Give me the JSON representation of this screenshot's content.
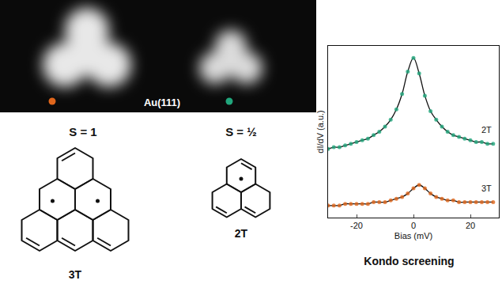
{
  "stm_image": {
    "label": "Au(111)",
    "markers": [
      {
        "molecule": "3T",
        "color": "#e0661c"
      },
      {
        "molecule": "2T",
        "color": "#21a67c"
      }
    ]
  },
  "molecules": [
    {
      "name": "3T",
      "spin": "S = 1"
    },
    {
      "name": "2T",
      "spin": "S = ½"
    }
  ],
  "chart_data": {
    "type": "scatter",
    "caption": "Kondo screening",
    "x_label": "Bias (mV)",
    "y_label": "dI/dV (a.u.)",
    "x": [
      -30,
      -28,
      -26,
      -24,
      -22,
      -20,
      -18,
      -16,
      -14,
      -12,
      -10,
      -8,
      -6,
      -4,
      -2,
      0,
      2,
      4,
      6,
      8,
      10,
      12,
      14,
      16,
      18,
      20,
      22,
      24,
      26,
      28
    ],
    "series": [
      {
        "name": "2T",
        "color": "#21a67c",
        "marker": "circle",
        "line_style": "solid",
        "values": [
          0.4,
          0.41,
          0.41,
          0.42,
          0.43,
          0.44,
          0.45,
          0.46,
          0.48,
          0.5,
          0.53,
          0.57,
          0.63,
          0.72,
          0.85,
          0.93,
          0.84,
          0.71,
          0.62,
          0.57,
          0.53,
          0.5,
          0.48,
          0.47,
          0.46,
          0.45,
          0.44,
          0.44,
          0.43,
          0.43
        ]
      },
      {
        "name": "3T",
        "color": "#e0661c",
        "marker": "circle",
        "line_style": "solid",
        "values": [
          0.07,
          0.07,
          0.07,
          0.08,
          0.08,
          0.08,
          0.08,
          0.08,
          0.09,
          0.09,
          0.09,
          0.1,
          0.11,
          0.12,
          0.14,
          0.17,
          0.19,
          0.17,
          0.14,
          0.12,
          0.11,
          0.1,
          0.1,
          0.09,
          0.09,
          0.09,
          0.09,
          0.09,
          0.09,
          0.09
        ]
      }
    ],
    "xlim": [
      -30,
      30
    ],
    "xticks": [
      -20,
      0,
      20
    ],
    "ylim": [
      0,
      1
    ],
    "tick_labels": "x"
  }
}
